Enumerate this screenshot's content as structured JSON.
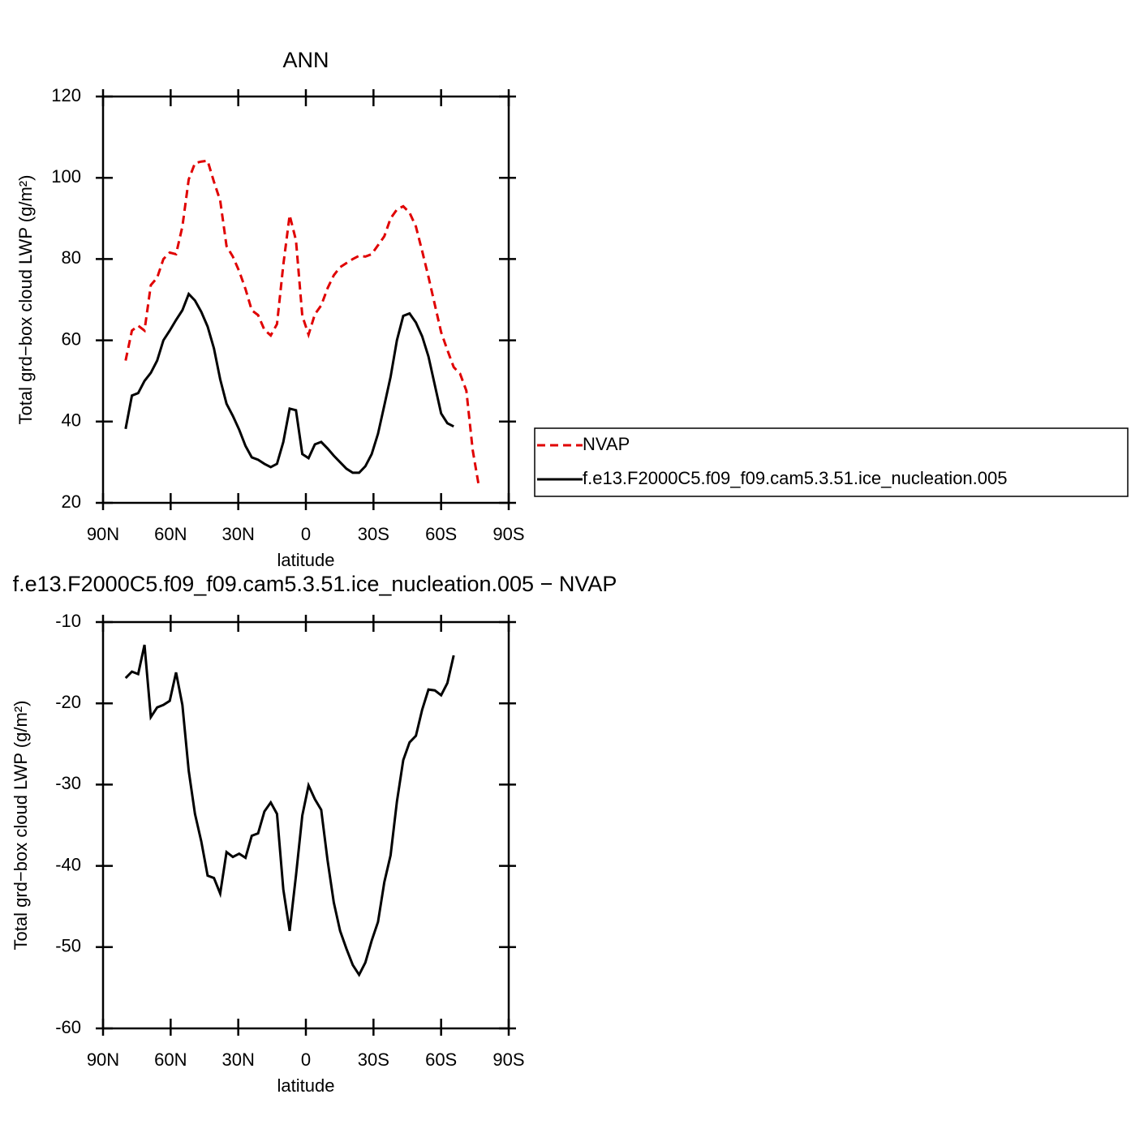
{
  "chart_data": [
    {
      "type": "line",
      "title": "ANN",
      "xlabel": "latitude",
      "ylabel": "Total grd−box cloud LWP (g/m²)",
      "xlim": [
        90,
        -90
      ],
      "xticks": [
        {
          "value": 90,
          "label": "90N"
        },
        {
          "value": 60,
          "label": "60N"
        },
        {
          "value": 30,
          "label": "30N"
        },
        0,
        {
          "value": -30,
          "label": "30S"
        },
        {
          "value": -60,
          "label": "60S"
        },
        {
          "value": -90,
          "label": "90S"
        }
      ],
      "ylim": [
        20,
        120
      ],
      "yticks": [
        20,
        40,
        60,
        80,
        100,
        120
      ],
      "legend": "right",
      "x": [
        80,
        77.2,
        74.4,
        71.6,
        68.8,
        66,
        63.2,
        60.4,
        57.6,
        54.8,
        52,
        49.2,
        46.4,
        43.6,
        40.8,
        38,
        35.2,
        32.4,
        29.6,
        26.8,
        24,
        21.2,
        18.4,
        15.6,
        12.8,
        10,
        7.2,
        4.4,
        1.6,
        -1.2,
        -4,
        -6.8,
        -9.6,
        -12.4,
        -15.2,
        -18,
        -20.8,
        -23.6,
        -26.4,
        -29.2,
        -32,
        -34.8,
        -37.6,
        -40.4,
        -43.2,
        -46,
        -48.8,
        -51.6,
        -54.4,
        -57.2,
        -60,
        -62.8,
        -65.6,
        -68.4,
        -71.2,
        -74,
        -76.8
      ],
      "series": [
        {
          "name": "NVAP",
          "color": "#e00000",
          "style": "dashed",
          "values": [
            55,
            62.4,
            63.6,
            62.4,
            73.6,
            75.4,
            80,
            81.6,
            81.2,
            88,
            99.6,
            103.6,
            104,
            104.2,
            99,
            94.4,
            83.2,
            80.6,
            77,
            72.6,
            67.4,
            66.2,
            62.6,
            61.2,
            64,
            78.6,
            90.8,
            84.6,
            66,
            61.4,
            66.4,
            68.6,
            72.8,
            76,
            78,
            79,
            80,
            80.8,
            80.6,
            81.2,
            83.4,
            85.6,
            90,
            92.2,
            93,
            91.4,
            88,
            82,
            75.6,
            68.8,
            62,
            57.6,
            53.4,
            51.8,
            47.6,
            33,
            24
          ]
        },
        {
          "name": "f.e13.F2000C5.f09_f09.cam5.3.51.ice_nucleation.005",
          "color": "#000000",
          "style": "solid",
          "values": [
            38.2,
            46.4,
            47,
            50,
            52,
            55,
            60,
            62.4,
            65,
            67.4,
            71.4,
            69.8,
            67,
            63.4,
            58,
            50.4,
            44.4,
            41.4,
            38,
            34,
            31.2,
            30.6,
            29.6,
            28.8,
            29.6,
            35,
            43.2,
            42.8,
            32,
            31,
            34.4,
            35,
            33.4,
            31.6,
            30,
            28.4,
            27.4,
            27.4,
            29,
            32,
            37,
            44,
            51,
            60,
            66,
            66.6,
            64.4,
            61,
            56,
            49,
            42,
            39.6,
            38.8,
            null,
            null,
            null,
            null
          ]
        }
      ]
    },
    {
      "type": "line",
      "title": "f.e13.F2000C5.f09_f09.cam5.3.51.ice_nucleation.005 − NVAP",
      "xlabel": "latitude",
      "ylabel": "Total grd−box cloud LWP (g/m²)",
      "xlim": [
        90,
        -90
      ],
      "xticks": [
        {
          "value": 90,
          "label": "90N"
        },
        {
          "value": 60,
          "label": "60N"
        },
        {
          "value": 30,
          "label": "30N"
        },
        0,
        {
          "value": -30,
          "label": "30S"
        },
        {
          "value": -60,
          "label": "60S"
        },
        {
          "value": -90,
          "label": "90S"
        }
      ],
      "ylim": [
        -60,
        -10
      ],
      "yticks": [
        -60,
        -50,
        -40,
        -30,
        -20,
        -10
      ],
      "x": [
        80,
        77.2,
        74.4,
        71.6,
        68.8,
        66,
        63.2,
        60.4,
        57.6,
        54.8,
        52,
        49.2,
        46.4,
        43.6,
        40.8,
        38,
        35.2,
        32.4,
        29.6,
        26.8,
        24,
        21.2,
        18.4,
        15.6,
        12.8,
        10,
        7.2,
        4.4,
        1.6,
        -1.2,
        -4,
        -6.8,
        -9.6,
        -12.4,
        -15.2,
        -18,
        -20.8,
        -23.6,
        -26.4,
        -29.2,
        -32,
        -34.8,
        -37.6,
        -40.4,
        -43.2,
        -46,
        -48.8,
        -51.6,
        -54.4,
        -57.2,
        -60,
        -62.8,
        -65.6,
        -68.4,
        -71.2,
        -74,
        -76.8
      ],
      "color": "#000000",
      "values": [
        -16.9,
        -16.1,
        -16.4,
        -12.8,
        -21.7,
        -20.5,
        -20.2,
        -19.7,
        -16.2,
        -20.2,
        -28.3,
        -33.6,
        -37,
        -41.2,
        -41.5,
        -43.4,
        -38.3,
        -38.9,
        -38.5,
        -39,
        -36.3,
        -36,
        -33.3,
        -32.2,
        -33.6,
        -42.9,
        -48,
        -41.2,
        -33.8,
        -30.1,
        -31.8,
        -33.1,
        -39.3,
        -44.5,
        -48,
        -50.2,
        -52.2,
        -53.4,
        -51.9,
        -49.2,
        -46.9,
        -42,
        -38.7,
        -32.1,
        -27,
        -24.8,
        -24,
        -20.8,
        -18.3,
        -18.4,
        -19,
        -17.5,
        -14.1,
        null,
        null,
        null,
        null
      ]
    }
  ]
}
